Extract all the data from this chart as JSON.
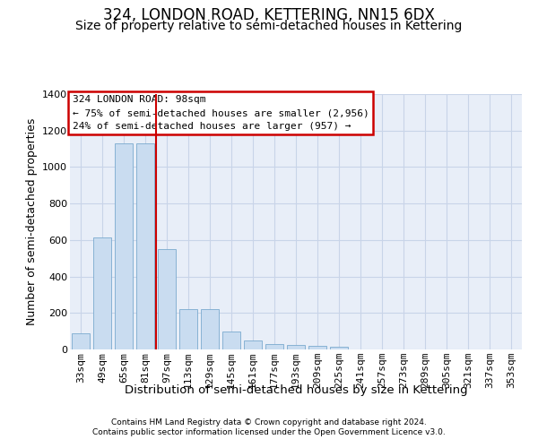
{
  "title1": "324, LONDON ROAD, KETTERING, NN15 6DX",
  "title2": "Size of property relative to semi-detached houses in Kettering",
  "xlabel": "Distribution of semi-detached houses by size in Kettering",
  "ylabel": "Number of semi-detached properties",
  "categories": [
    "33sqm",
    "49sqm",
    "65sqm",
    "81sqm",
    "97sqm",
    "113sqm",
    "129sqm",
    "145sqm",
    "161sqm",
    "177sqm",
    "193sqm",
    "209sqm",
    "225sqm",
    "241sqm",
    "257sqm",
    "273sqm",
    "289sqm",
    "305sqm",
    "321sqm",
    "337sqm",
    "353sqm"
  ],
  "values": [
    90,
    615,
    1130,
    1130,
    550,
    220,
    220,
    100,
    50,
    30,
    25,
    20,
    15,
    0,
    0,
    0,
    0,
    0,
    0,
    0,
    0
  ],
  "bar_color": "#c9dcf0",
  "bar_edge_color": "#7aaacf",
  "vline_index": 3.5,
  "vline_color": "#cc0000",
  "annotation_text": "324 LONDON ROAD: 98sqm\n← 75% of semi-detached houses are smaller (2,956)\n24% of semi-detached houses are larger (957) →",
  "annotation_box_edge_color": "#cc0000",
  "ylim": [
    0,
    1400
  ],
  "yticks": [
    0,
    200,
    400,
    600,
    800,
    1000,
    1200,
    1400
  ],
  "grid_color": "#c8d4e8",
  "bg_color": "#e8eef8",
  "title1_fontsize": 12,
  "title2_fontsize": 10,
  "tick_fontsize": 8,
  "ylabel_fontsize": 9,
  "xlabel_fontsize": 9.5,
  "footer1": "Contains HM Land Registry data © Crown copyright and database right 2024.",
  "footer2": "Contains public sector information licensed under the Open Government Licence v3.0.",
  "footer_fontsize": 6.5
}
